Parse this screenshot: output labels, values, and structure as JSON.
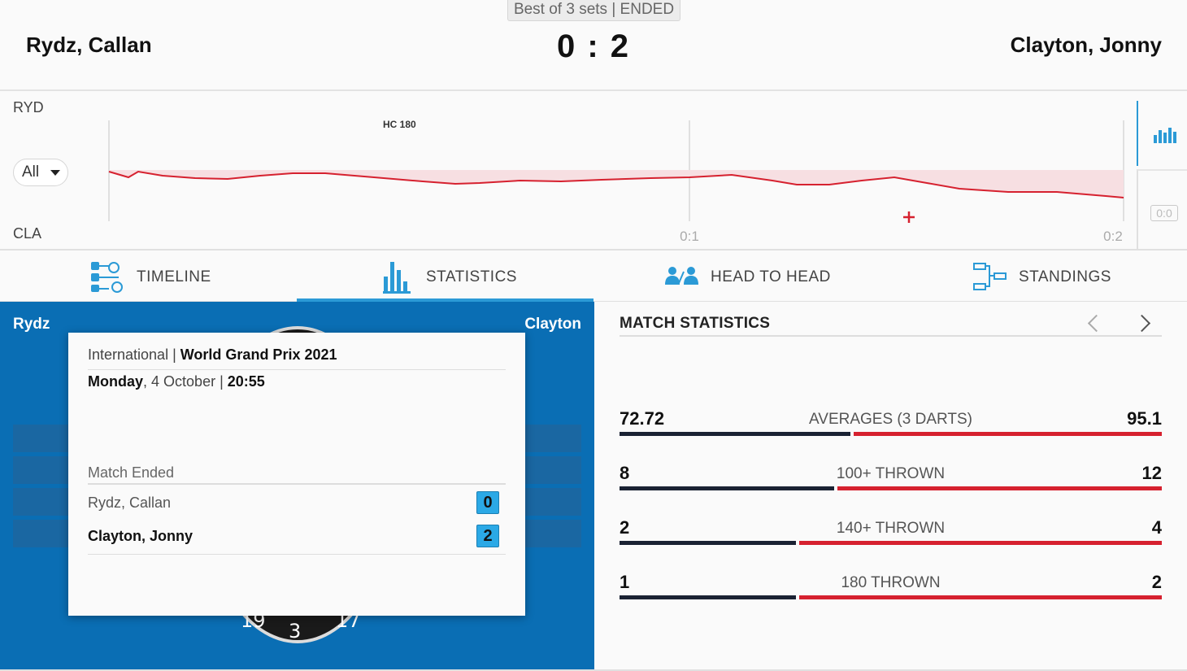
{
  "header": {
    "format": "Best of 3 sets | ENDED",
    "player_left": "Rydz, Callan",
    "player_right": "Clayton, Jonny",
    "score": "0 : 2"
  },
  "momentum": {
    "top_abbr": "RYD",
    "bottom_abbr": "CLA",
    "filter_value": "All",
    "event_badge": "HC 180",
    "set_markers": [
      "0:1",
      "0:2"
    ],
    "mini_score": "0:0",
    "colors": {
      "line": "#d6212f",
      "fill": "#f7dfe2",
      "accent": "#2b9ad6"
    }
  },
  "tabs": [
    {
      "label": "TIMELINE",
      "icon": "timeline-icon",
      "active": false
    },
    {
      "label": "STATISTICS",
      "icon": "statistics-icon",
      "active": true
    },
    {
      "label": "HEAD TO HEAD",
      "icon": "head-to-head-icon",
      "active": false
    },
    {
      "label": "STANDINGS",
      "icon": "standings-icon",
      "active": false
    }
  ],
  "left_panel": {
    "name_left": "Rydz",
    "name_right": "Clayton",
    "board_numbers": [
      "19",
      "3",
      "17"
    ]
  },
  "match_card": {
    "category": "International",
    "tournament": "World Grand Prix 2021",
    "day": "Monday",
    "date": "4 October",
    "time": "20:55",
    "status": "Match Ended",
    "players": [
      {
        "name": "Rydz, Callan",
        "score": "0"
      },
      {
        "name": "Clayton, Jonny",
        "score": "2"
      }
    ]
  },
  "match_statistics": {
    "title": "MATCH STATISTICS",
    "stats": [
      {
        "label": "AVERAGES (3 DARTS)",
        "left": "72.72",
        "right": "95.1"
      },
      {
        "label": "100+ THROWN",
        "left": "8",
        "right": "12"
      },
      {
        "label": "140+ THROWN",
        "left": "2",
        "right": "4"
      },
      {
        "label": "180 THROWN",
        "left": "1",
        "right": "2"
      }
    ]
  }
}
